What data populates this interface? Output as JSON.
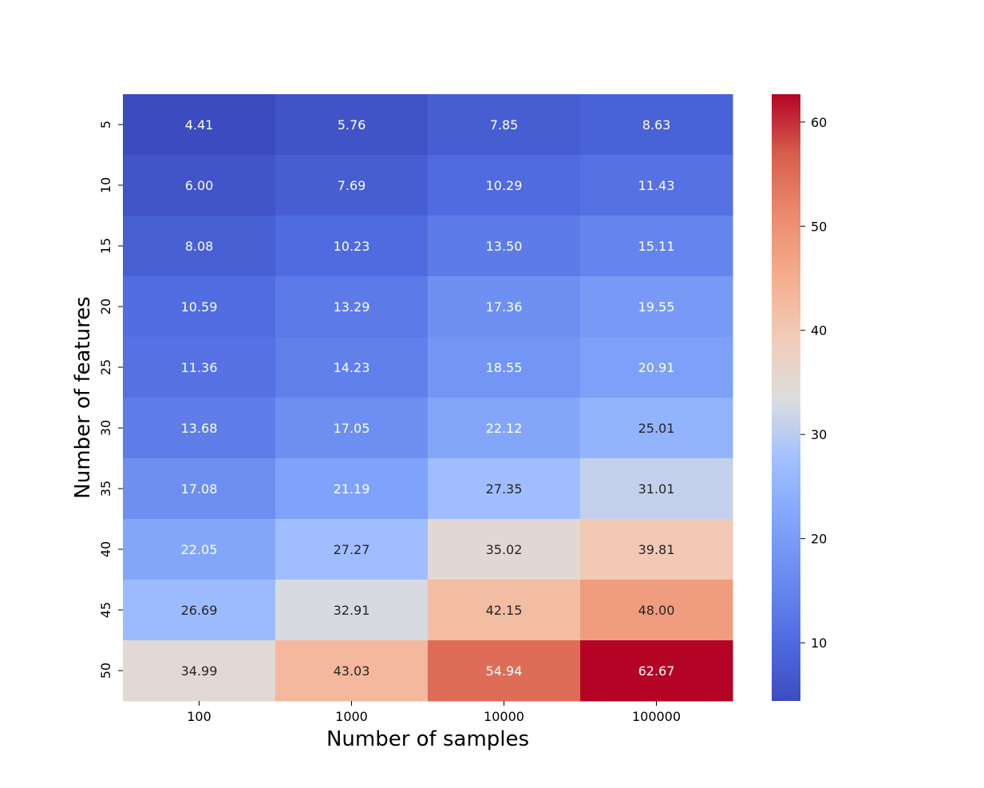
{
  "chart_data": {
    "type": "heatmap",
    "title": "",
    "xlabel": "Number of samples",
    "ylabel": "Number of features",
    "x_categories": [
      "100",
      "1000",
      "10000",
      "100000"
    ],
    "y_categories": [
      "5",
      "10",
      "15",
      "20",
      "25",
      "30",
      "35",
      "40",
      "45",
      "50"
    ],
    "values": [
      [
        4.41,
        5.76,
        7.85,
        8.63
      ],
      [
        6.0,
        7.69,
        10.29,
        11.43
      ],
      [
        8.08,
        10.23,
        13.5,
        15.11
      ],
      [
        10.59,
        13.29,
        17.36,
        19.55
      ],
      [
        11.36,
        14.23,
        18.55,
        20.91
      ],
      [
        13.68,
        17.05,
        22.12,
        25.01
      ],
      [
        17.08,
        21.19,
        27.35,
        31.01
      ],
      [
        22.05,
        27.27,
        35.02,
        39.81
      ],
      [
        26.69,
        32.91,
        42.15,
        48.0
      ],
      [
        34.99,
        43.03,
        54.94,
        62.67
      ]
    ],
    "value_format": "0.00",
    "colormap": "coolwarm",
    "colorbar": {
      "min": 4.41,
      "max": 62.67,
      "ticks": [
        10,
        20,
        30,
        40,
        50,
        60
      ],
      "tick_labels": [
        "10",
        "20",
        "30",
        "40",
        "50",
        "60"
      ],
      "position": "right"
    }
  }
}
